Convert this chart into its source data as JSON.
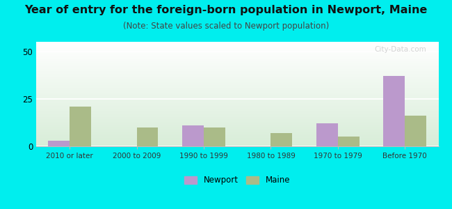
{
  "title": "Year of entry for the foreign-born population in Newport, Maine",
  "subtitle": "(Note: State values scaled to Newport population)",
  "categories": [
    "2010 or later",
    "2000 to 2009",
    "1990 to 1999",
    "1980 to 1989",
    "1970 to 1979",
    "Before 1970"
  ],
  "newport_values": [
    3,
    0,
    11,
    0,
    12,
    37
  ],
  "maine_values": [
    21,
    10,
    10,
    7,
    5,
    16
  ],
  "newport_color": "#bb99cc",
  "maine_color": "#aabb88",
  "background_color": "#00eeee",
  "ylim": [
    0,
    55
  ],
  "yticks": [
    0,
    25,
    50
  ],
  "bar_width": 0.32,
  "title_fontsize": 11.5,
  "subtitle_fontsize": 8.5,
  "watermark": "City-Data.com"
}
